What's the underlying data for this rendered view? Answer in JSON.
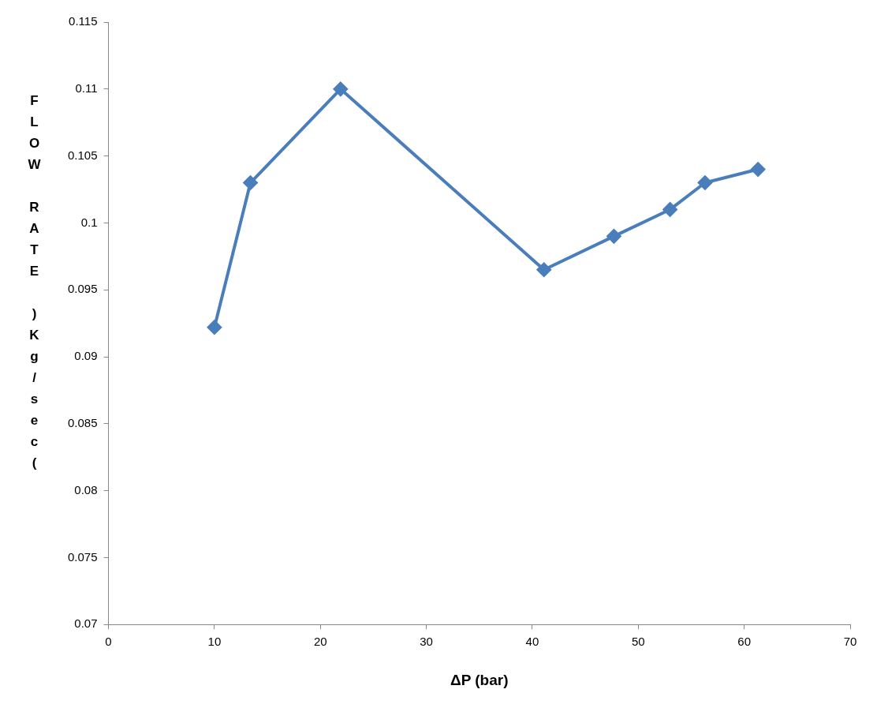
{
  "chart_data": {
    "type": "line",
    "xlabel": "ΔP (bar)",
    "ylabel": "FLOW RATE )Kg/sec(",
    "series": [
      {
        "color": "#4a7ebb",
        "x": [
          10,
          13.4,
          21.9,
          41.1,
          47.7,
          53,
          56.3,
          61.3
        ],
        "values": [
          0.0922,
          0.103,
          0.11,
          0.0965,
          0.099,
          0.101,
          0.103,
          0.104
        ]
      }
    ],
    "xlim": [
      0,
      70
    ],
    "xticks": [
      0,
      10,
      20,
      30,
      40,
      50,
      60,
      70
    ],
    "ylim": [
      0.07,
      0.115
    ],
    "yticks": [
      0.07,
      0.075,
      0.08,
      0.085,
      0.09,
      0.095,
      0.1,
      0.105,
      0.11,
      0.115
    ],
    "grid": false,
    "legend": false,
    "marker": "diamond",
    "line_style": "solid"
  }
}
